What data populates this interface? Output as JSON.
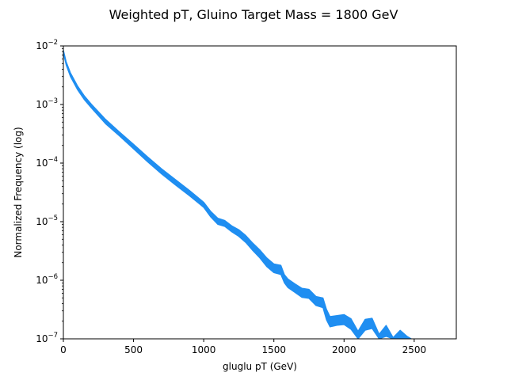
{
  "chart_data": {
    "type": "area",
    "title": "Weighted pT, Gluino Target Mass = 1800 GeV",
    "xlabel": "gluglu pT (GeV)",
    "ylabel": "Normalized Frequency (log)",
    "xlim": [
      0,
      2800
    ],
    "ylim": [
      1e-07,
      0.01
    ],
    "yscale": "log",
    "grid": false,
    "x_ticks": [
      0,
      500,
      1000,
      1500,
      2000,
      2500
    ],
    "y_ticks": [
      {
        "value": 1e-07,
        "base": "10",
        "exp": "−7"
      },
      {
        "value": 1e-06,
        "base": "10",
        "exp": "−6"
      },
      {
        "value": 1e-05,
        "base": "10",
        "exp": "−5"
      },
      {
        "value": 0.0001,
        "base": "10",
        "exp": "−4"
      },
      {
        "value": 0.001,
        "base": "10",
        "exp": "−3"
      },
      {
        "value": 0.01,
        "base": "10",
        "exp": "−2"
      }
    ],
    "color": "#1f8ef1",
    "series": [
      {
        "x": [
          0,
          20,
          50,
          100,
          150,
          200,
          300,
          400,
          500,
          600,
          700,
          800,
          900,
          1000,
          1050,
          1100,
          1150,
          1200,
          1250,
          1300,
          1350,
          1400,
          1450,
          1500,
          1550,
          1575,
          1600,
          1650,
          1700,
          1750,
          1800,
          1850,
          1875,
          1900,
          1950,
          2000,
          2050,
          2100,
          2150,
          2200,
          2250,
          2300,
          2350,
          2400,
          2450,
          2480
        ],
        "upper": [
          0.0085,
          0.0054,
          0.0035,
          0.0021,
          0.0014,
          0.00101,
          0.00056,
          0.00034,
          0.00021,
          0.000128,
          8e-05,
          5.2e-05,
          3.4e-05,
          2.15e-05,
          1.5e-05,
          1.15e-05,
          1.05e-05,
          8.5e-06,
          7.3e-06,
          5.8e-06,
          4.3e-06,
          3.3e-06,
          2.4e-06,
          1.9e-06,
          1.8e-06,
          1.25e-06,
          1.05e-06,
          8.7e-07,
          7.3e-07,
          7e-07,
          5.3e-07,
          5e-07,
          3.2e-07,
          2.4e-07,
          2.5e-07,
          2.6e-07,
          2.2e-07,
          1.35e-07,
          2.15e-07,
          2.25e-07,
          1.2e-07,
          1.7e-07,
          1.05e-07,
          1.4e-07,
          1.1e-07,
          1e-07
        ],
        "lower": [
          0.0075,
          0.0047,
          0.003,
          0.0018,
          0.0012,
          0.00087,
          0.00047,
          0.00029,
          0.000175,
          0.000105,
          6.5e-05,
          4.2e-05,
          2.75e-05,
          1.75e-05,
          1.2e-05,
          9e-06,
          8.3e-06,
          6.7e-06,
          5.6e-06,
          4.4e-06,
          3.2e-06,
          2.4e-06,
          1.7e-06,
          1.35e-06,
          1.25e-06,
          9e-07,
          7.5e-07,
          6.2e-07,
          5.1e-07,
          4.9e-07,
          3.7e-07,
          3.4e-07,
          2.1e-07,
          1.6e-07,
          1.7e-07,
          1.75e-07,
          1.45e-07,
          1e-07,
          1.4e-07,
          1.5e-07,
          1e-07,
          1.1e-07,
          1e-07,
          1e-07,
          1e-07,
          1e-07
        ]
      }
    ]
  }
}
